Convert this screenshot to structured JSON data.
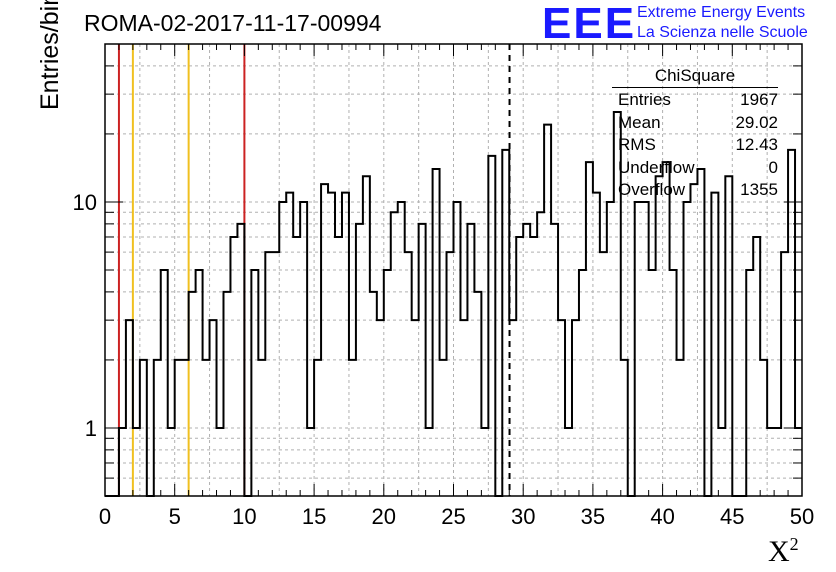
{
  "title": "ROMA-02-2017-11-17-00994",
  "logo": {
    "mark": "EEE",
    "line1": "Extreme Energy Events",
    "line2": "La Scienza nelle Scuole"
  },
  "stats_box": {
    "title": "ChiSquare",
    "rows": [
      {
        "label": "Entries",
        "value": "1967"
      },
      {
        "label": "Mean",
        "value": "29.02"
      },
      {
        "label": "RMS",
        "value": "12.43"
      },
      {
        "label": "Underflow",
        "value": "0"
      },
      {
        "label": "Overflow",
        "value": "1355"
      }
    ]
  },
  "chart_data": {
    "type": "histogram",
    "title": "ROMA-02-2017-11-17-00994",
    "xlabel": "X²",
    "ylabel": "Entries/bin",
    "xlim": [
      0,
      50
    ],
    "ylim": [
      0.5,
      50
    ],
    "yscale": "log",
    "grid": true,
    "bin_width": 0.5,
    "x_ticks": [
      0,
      5,
      10,
      15,
      20,
      25,
      30,
      35,
      40,
      45,
      50
    ],
    "y_tick_labels": [
      "1",
      "10"
    ],
    "values": [
      0,
      0,
      1,
      3,
      1,
      2,
      0,
      2,
      5,
      1,
      2,
      2,
      4,
      5,
      2,
      3,
      1,
      4,
      7,
      8,
      0,
      5,
      2,
      6,
      6,
      10,
      11,
      7,
      10,
      1,
      2,
      12,
      11,
      7,
      11,
      2,
      8,
      13,
      4,
      3,
      5,
      9,
      10,
      6,
      3,
      8,
      1,
      14,
      2,
      6,
      10,
      3,
      8,
      4,
      1,
      16,
      0,
      17,
      3,
      7,
      8,
      7,
      9,
      22,
      8,
      3,
      1,
      3,
      5,
      15,
      11,
      6,
      10,
      25,
      2,
      0,
      10,
      10,
      5,
      13,
      15,
      5,
      2,
      10,
      12,
      14,
      0,
      11,
      1,
      13,
      0,
      0,
      5,
      7,
      2,
      1,
      1,
      6,
      17,
      1
    ],
    "reference_lines": [
      {
        "x": 1,
        "color": "#cc2222",
        "style": "solid"
      },
      {
        "x": 2,
        "color": "#f0c020",
        "style": "solid"
      },
      {
        "x": 6,
        "color": "#f0c020",
        "style": "solid"
      },
      {
        "x": 10,
        "color": "#cc2222",
        "style": "solid"
      },
      {
        "x": 29.02,
        "color": "#000000",
        "style": "dashed"
      }
    ]
  }
}
